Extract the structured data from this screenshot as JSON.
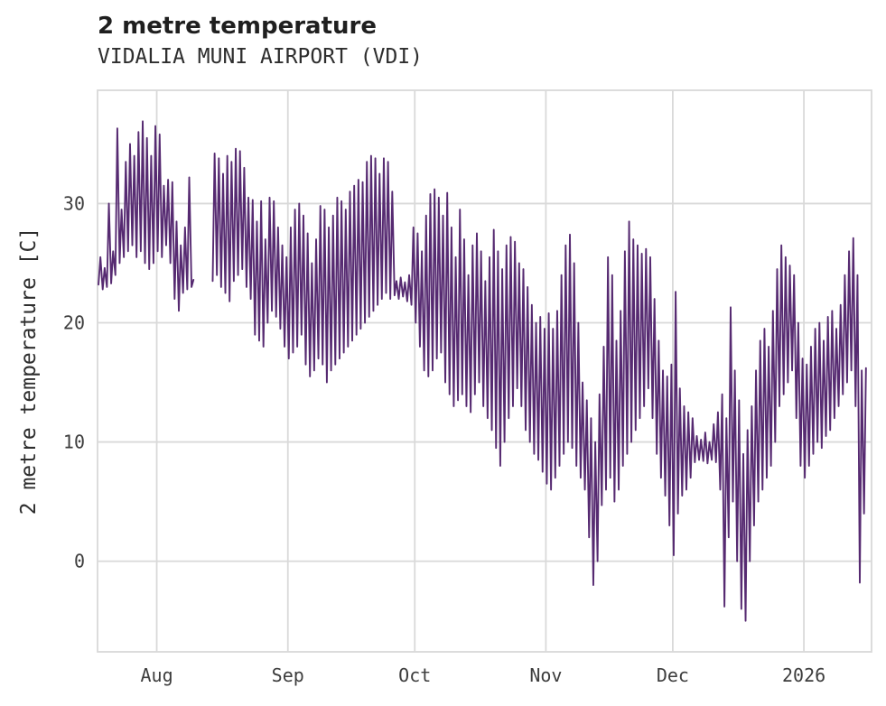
{
  "chart_data": {
    "type": "line",
    "title": "2 metre temperature",
    "subtitle": "VIDALIA MUNI AIRPORT (VDI)",
    "ylabel": "2 metre temperature [C]",
    "line_color": "#562a71",
    "grid_color": "#d9d9d9",
    "background": "#ffffff",
    "ylim": [
      -7.6,
      39.5
    ],
    "yticks": [
      0,
      10,
      20,
      30
    ],
    "xlim_days": [
      0,
      183
    ],
    "xticks": [
      {
        "day": 14,
        "label": "Aug"
      },
      {
        "day": 45,
        "label": "Sep"
      },
      {
        "day": 75,
        "label": "Oct"
      },
      {
        "day": 106,
        "label": "Nov"
      },
      {
        "day": 136,
        "label": "Dec"
      },
      {
        "day": 167,
        "label": "2026"
      }
    ],
    "series_name": "2 metre temperature",
    "daily_min_max": [
      [
        23.2,
        25.5
      ],
      [
        22.8,
        24.6
      ],
      [
        23.0,
        30.0
      ],
      [
        23.3,
        26.0
      ],
      [
        24.0,
        36.3
      ],
      [
        25.0,
        29.5
      ],
      [
        25.5,
        33.5
      ],
      [
        26.0,
        35.0
      ],
      [
        26.5,
        34.0
      ],
      [
        25.5,
        36.0
      ],
      [
        26.0,
        36.9
      ],
      [
        25.0,
        35.5
      ],
      [
        24.5,
        34.0
      ],
      [
        25.0,
        36.5
      ],
      [
        26.0,
        35.8
      ],
      [
        25.5,
        31.5
      ],
      [
        26.5,
        32.0
      ],
      [
        25.0,
        31.8
      ],
      [
        22.0,
        28.5
      ],
      [
        21.0,
        26.5
      ],
      [
        22.5,
        28.0
      ],
      [
        22.8,
        32.2
      ],
      [
        23.0,
        23.6
      ],
      null,
      null,
      null,
      null,
      [
        23.5,
        34.2
      ],
      [
        24.0,
        33.8
      ],
      [
        23.0,
        32.5
      ],
      [
        22.5,
        34.0
      ],
      [
        21.8,
        33.5
      ],
      [
        23.5,
        34.6
      ],
      [
        24.0,
        34.4
      ],
      [
        24.5,
        33.0
      ],
      [
        23.0,
        30.5
      ],
      [
        22.0,
        30.3
      ],
      [
        19.0,
        28.5
      ],
      [
        18.5,
        30.2
      ],
      [
        18.0,
        27.0
      ],
      [
        20.0,
        30.5
      ],
      [
        21.0,
        30.2
      ],
      [
        20.5,
        28.0
      ],
      [
        19.5,
        26.5
      ],
      [
        18.0,
        25.5
      ],
      [
        17.0,
        28.0
      ],
      [
        17.5,
        29.5
      ],
      [
        18.0,
        30.0
      ],
      [
        19.0,
        29.0
      ],
      [
        16.5,
        27.5
      ],
      [
        15.5,
        25.0
      ],
      [
        16.0,
        27.0
      ],
      [
        17.0,
        29.8
      ],
      [
        16.5,
        29.5
      ],
      [
        15.0,
        28.0
      ],
      [
        16.0,
        29.0
      ],
      [
        16.5,
        30.5
      ],
      [
        17.0,
        30.2
      ],
      [
        17.5,
        29.5
      ],
      [
        18.0,
        31.0
      ],
      [
        18.5,
        31.5
      ],
      [
        19.0,
        32.0
      ],
      [
        19.5,
        31.8
      ],
      [
        20.0,
        33.5
      ],
      [
        20.5,
        34.0
      ],
      [
        21.0,
        33.8
      ],
      [
        21.5,
        32.5
      ],
      [
        22.0,
        33.8
      ],
      [
        22.5,
        33.5
      ],
      [
        22.0,
        31.0
      ],
      [
        22.3,
        23.5
      ],
      [
        22.0,
        23.8
      ],
      [
        22.2,
        23.4
      ],
      [
        21.8,
        24.0
      ],
      [
        21.5,
        28.0
      ],
      [
        20.0,
        27.5
      ],
      [
        18.0,
        26.0
      ],
      [
        16.0,
        29.0
      ],
      [
        15.5,
        30.8
      ],
      [
        16.0,
        31.2
      ],
      [
        17.0,
        30.5
      ],
      [
        17.5,
        29.0
      ],
      [
        15.0,
        30.9
      ],
      [
        14.0,
        28.0
      ],
      [
        13.0,
        25.5
      ],
      [
        13.5,
        29.5
      ],
      [
        14.0,
        27.0
      ],
      [
        13.0,
        24.0
      ],
      [
        12.5,
        26.5
      ],
      [
        14.0,
        27.5
      ],
      [
        15.0,
        26.0
      ],
      [
        13.0,
        23.5
      ],
      [
        12.0,
        25.5
      ],
      [
        11.0,
        27.8
      ],
      [
        9.5,
        26.0
      ],
      [
        8.0,
        24.5
      ],
      [
        10.0,
        26.5
      ],
      [
        12.0,
        27.2
      ],
      [
        13.0,
        26.8
      ],
      [
        14.5,
        25.0
      ],
      [
        13.0,
        24.5
      ],
      [
        11.0,
        23.0
      ],
      [
        10.0,
        21.5
      ],
      [
        9.0,
        20.0
      ],
      [
        8.5,
        20.5
      ],
      [
        7.5,
        19.5
      ],
      [
        6.5,
        20.8
      ],
      [
        6.0,
        19.5
      ],
      [
        7.0,
        21.0
      ],
      [
        8.0,
        24.0
      ],
      [
        9.0,
        26.5
      ],
      [
        10.0,
        27.4
      ],
      [
        9.5,
        25.0
      ],
      [
        8.0,
        20.0
      ],
      [
        7.0,
        15.0
      ],
      [
        6.0,
        13.5
      ],
      [
        2.0,
        12.0
      ],
      [
        -2.0,
        10.0
      ],
      [
        0.0,
        14.0
      ],
      [
        4.7,
        18.0
      ],
      [
        6.0,
        25.5
      ],
      [
        7.0,
        24.0
      ],
      [
        5.0,
        18.5
      ],
      [
        6.0,
        21.0
      ],
      [
        8.0,
        26.0
      ],
      [
        9.0,
        28.5
      ],
      [
        10.0,
        27.0
      ],
      [
        11.0,
        26.5
      ],
      [
        12.0,
        25.8
      ],
      [
        13.0,
        26.2
      ],
      [
        14.5,
        25.5
      ],
      [
        12.0,
        22.0
      ],
      [
        9.0,
        18.5
      ],
      [
        7.0,
        16.0
      ],
      [
        5.5,
        15.5
      ],
      [
        3.0,
        16.5
      ],
      [
        0.5,
        22.6
      ],
      [
        4.0,
        14.5
      ],
      [
        5.5,
        13.0
      ],
      [
        6.0,
        12.5
      ],
      [
        7.0,
        12.0
      ],
      [
        8.3,
        10.5
      ],
      [
        8.5,
        10.2
      ],
      [
        8.4,
        10.8
      ],
      [
        8.2,
        10.0
      ],
      [
        8.5,
        11.5
      ],
      [
        8.3,
        12.5
      ],
      [
        6.0,
        14.0
      ],
      [
        -3.8,
        12.0
      ],
      [
        2.0,
        21.3
      ],
      [
        5.0,
        16.0
      ],
      [
        0.0,
        13.5
      ],
      [
        -4.0,
        9.0
      ],
      [
        -5.0,
        11.0
      ],
      [
        0.0,
        13.0
      ],
      [
        3.0,
        16.0
      ],
      [
        5.0,
        18.5
      ],
      [
        6.0,
        19.5
      ],
      [
        7.0,
        18.0
      ],
      [
        8.0,
        21.0
      ],
      [
        10.0,
        24.5
      ],
      [
        13.0,
        26.5
      ],
      [
        14.0,
        25.5
      ],
      [
        15.0,
        24.8
      ],
      [
        16.0,
        24.0
      ],
      [
        12.0,
        20.0
      ],
      [
        8.0,
        17.0
      ],
      [
        7.0,
        16.5
      ],
      [
        8.0,
        18.0
      ],
      [
        9.0,
        19.5
      ],
      [
        10.0,
        20.0
      ],
      [
        9.5,
        18.5
      ],
      [
        10.5,
        20.5
      ],
      [
        11.0,
        21.0
      ],
      [
        12.0,
        19.5
      ],
      [
        13.0,
        21.5
      ],
      [
        14.0,
        24.0
      ],
      [
        15.0,
        26.0
      ],
      [
        16.0,
        27.1
      ],
      [
        13.0,
        24.0
      ],
      [
        -1.8,
        16.0
      ],
      [
        4.0,
        16.2
      ],
      null
    ]
  }
}
